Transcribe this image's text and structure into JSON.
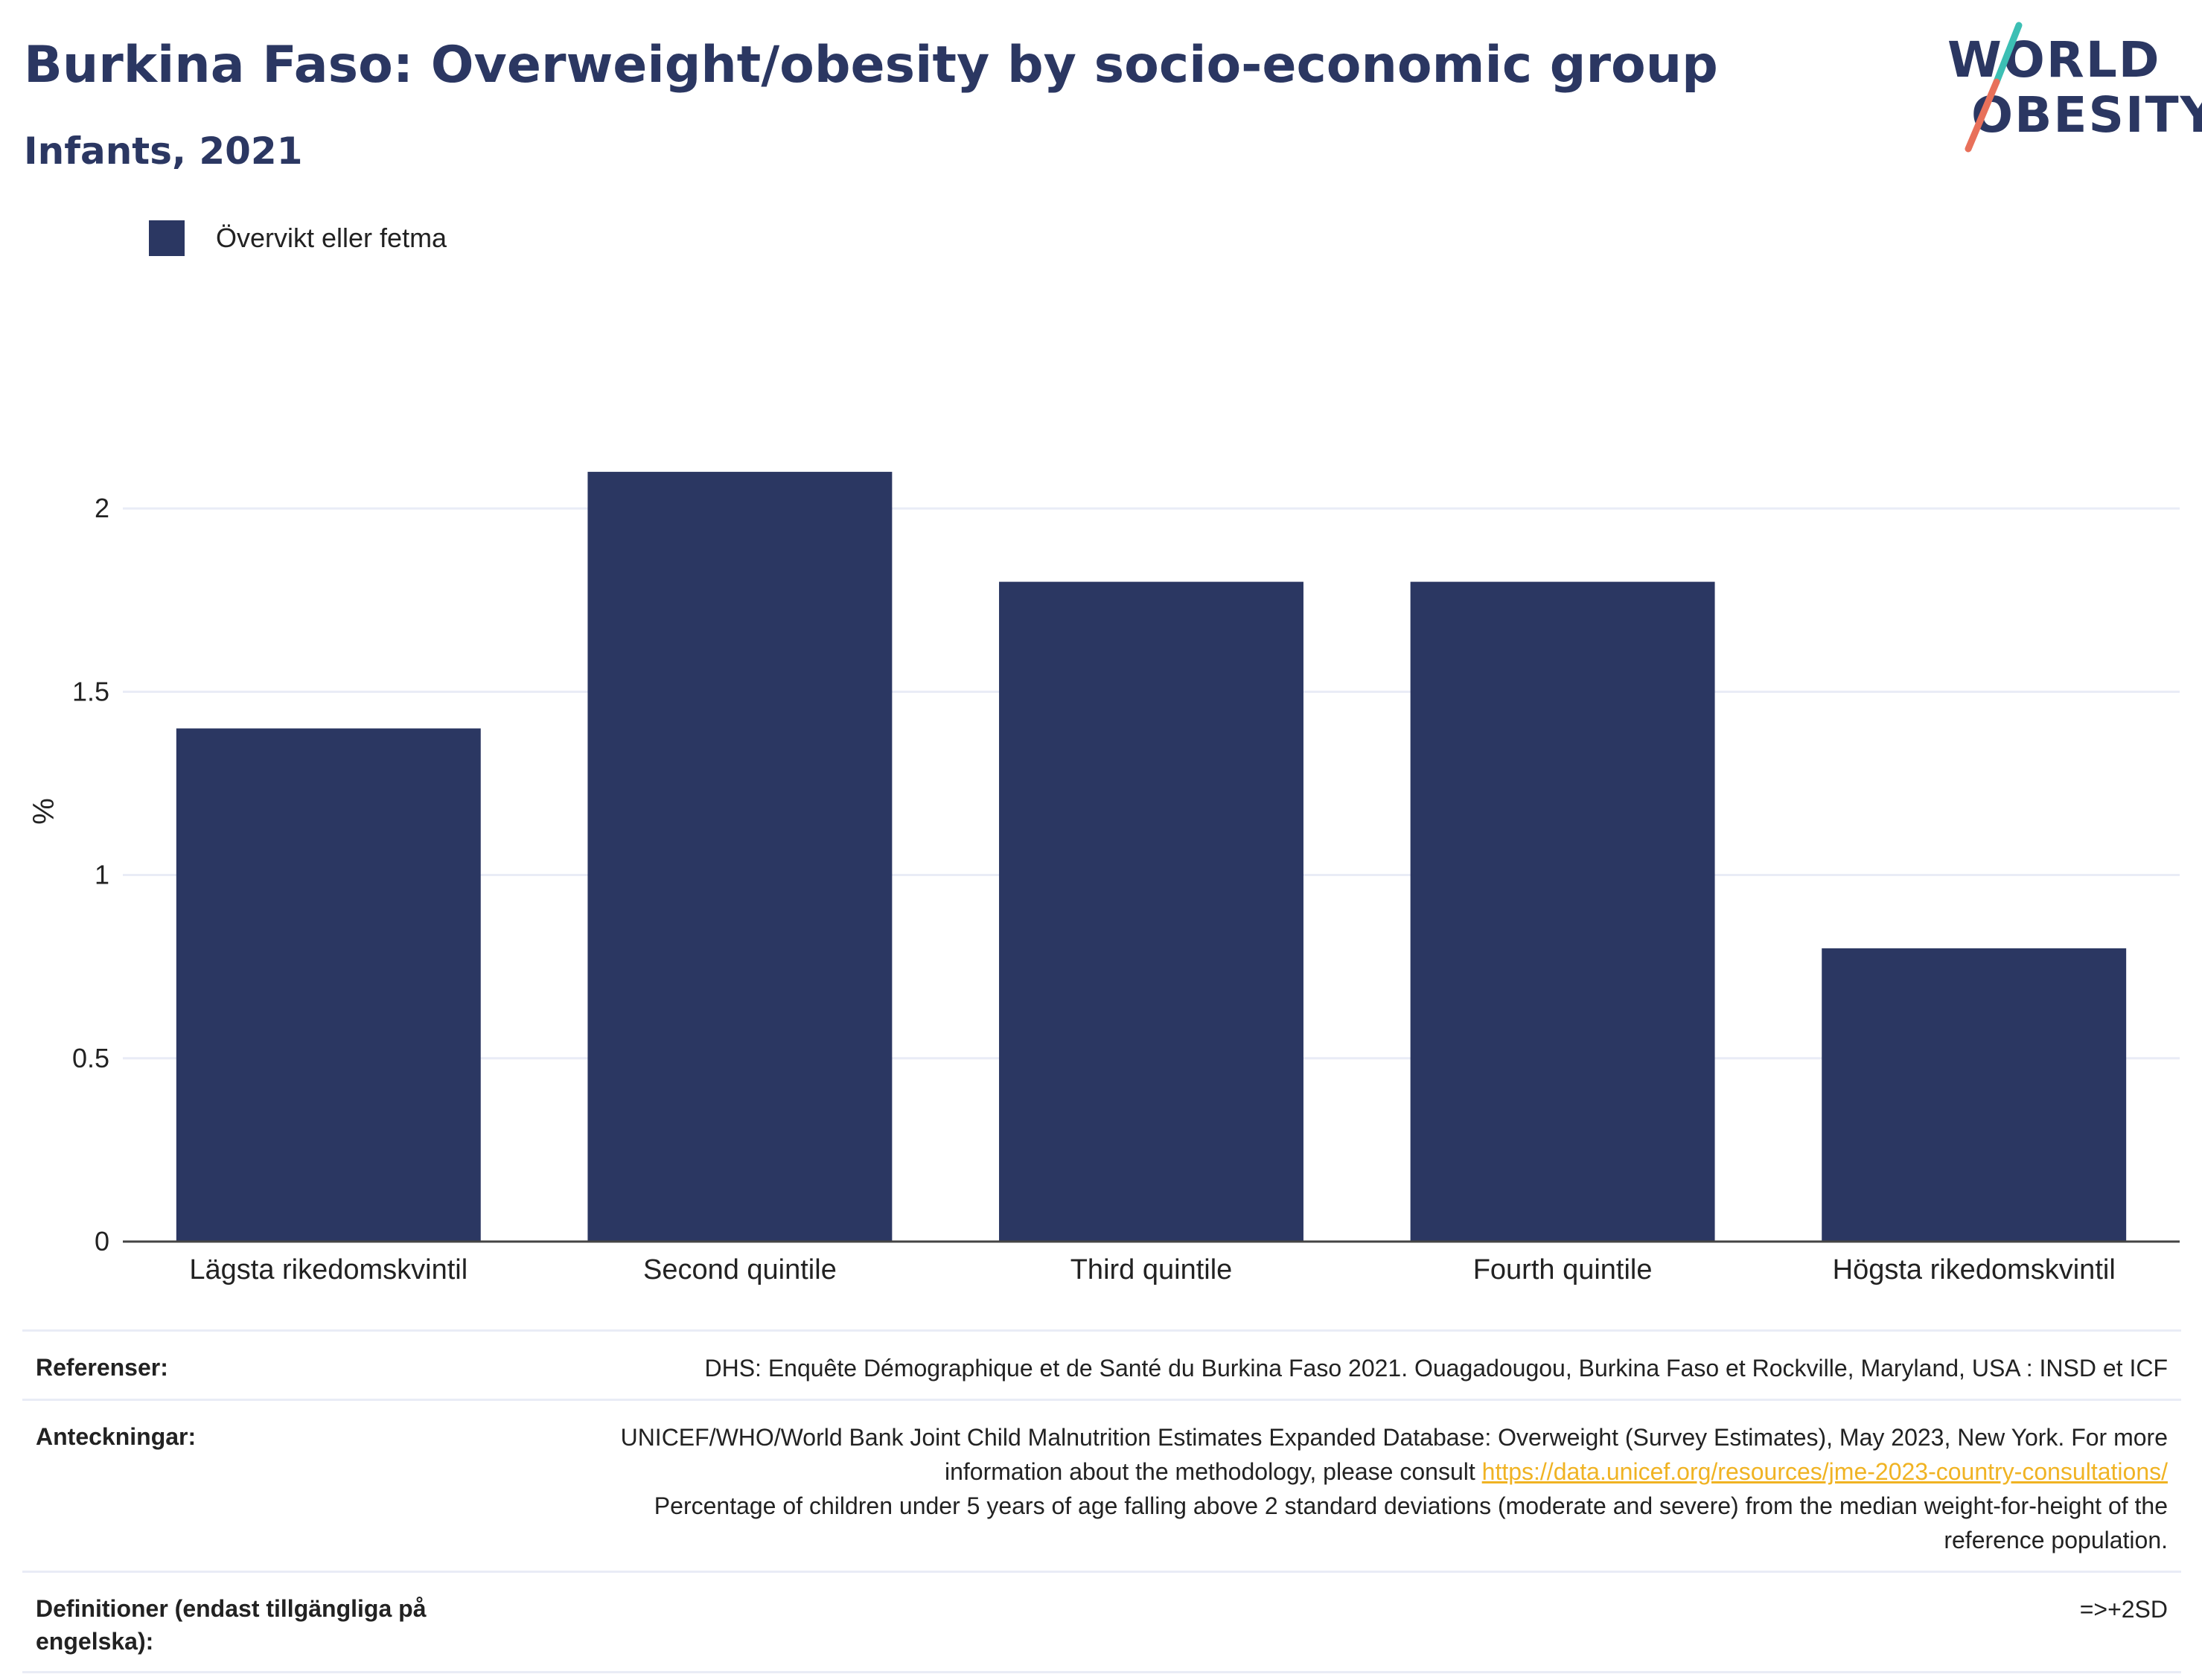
{
  "header": {
    "title": "Burkina Faso: Overweight/obesity by socio-economic group",
    "subtitle": "Infants, 2021"
  },
  "logo": {
    "line1": "WORLD",
    "line2": "OBESITY",
    "colors": {
      "text": "#2b3762",
      "slash_top": "#3cbfb4",
      "slash_bottom": "#e8705a"
    }
  },
  "legend": {
    "label": "Övervikt eller fetma",
    "color": "#2b3762"
  },
  "chart_data": {
    "type": "bar",
    "categories": [
      "Lägsta rikedomskvintil",
      "Second quintile",
      "Third quintile",
      "Fourth quintile",
      "Högsta rikedomskvintil"
    ],
    "series": [
      {
        "name": "Övervikt eller fetma",
        "values": [
          1.4,
          2.1,
          1.8,
          1.8,
          0.8
        ],
        "color": "#2b3762"
      }
    ],
    "ylabel": "%",
    "ylim": [
      0,
      2.25
    ],
    "yticks": [
      0,
      0.5,
      1,
      1.5,
      2
    ],
    "ytick_labels": [
      "0",
      "0.5",
      "1",
      "1.5",
      "2"
    ],
    "grid": true,
    "legend_position": "top-left"
  },
  "notes": [
    {
      "label": "Referenser:",
      "lines": [
        "DHS: Enquête Démographique et de Santé du Burkina Faso 2021. Ouagadougou, Burkina Faso et Rockville, Maryland, USA : INSD et ICF"
      ]
    },
    {
      "label": "Anteckningar:",
      "text_before_link": "UNICEF/WHO/World Bank Joint Child Malnutrition Estimates Expanded Database: Overweight (Survey Estimates), May 2023, New York. For more information about the methodology, please consult ",
      "link": "https://data.unicef.org/resources/jme-2023-country-consultations/",
      "text_after_link": "Percentage of children under 5 years of age falling above 2 standard deviations (moderate and severe) from the median weight-for-height of the reference population."
    },
    {
      "label": "Definitioner (endast tillgängliga på engelska):",
      "lines": [
        "=>+2SD"
      ]
    }
  ]
}
